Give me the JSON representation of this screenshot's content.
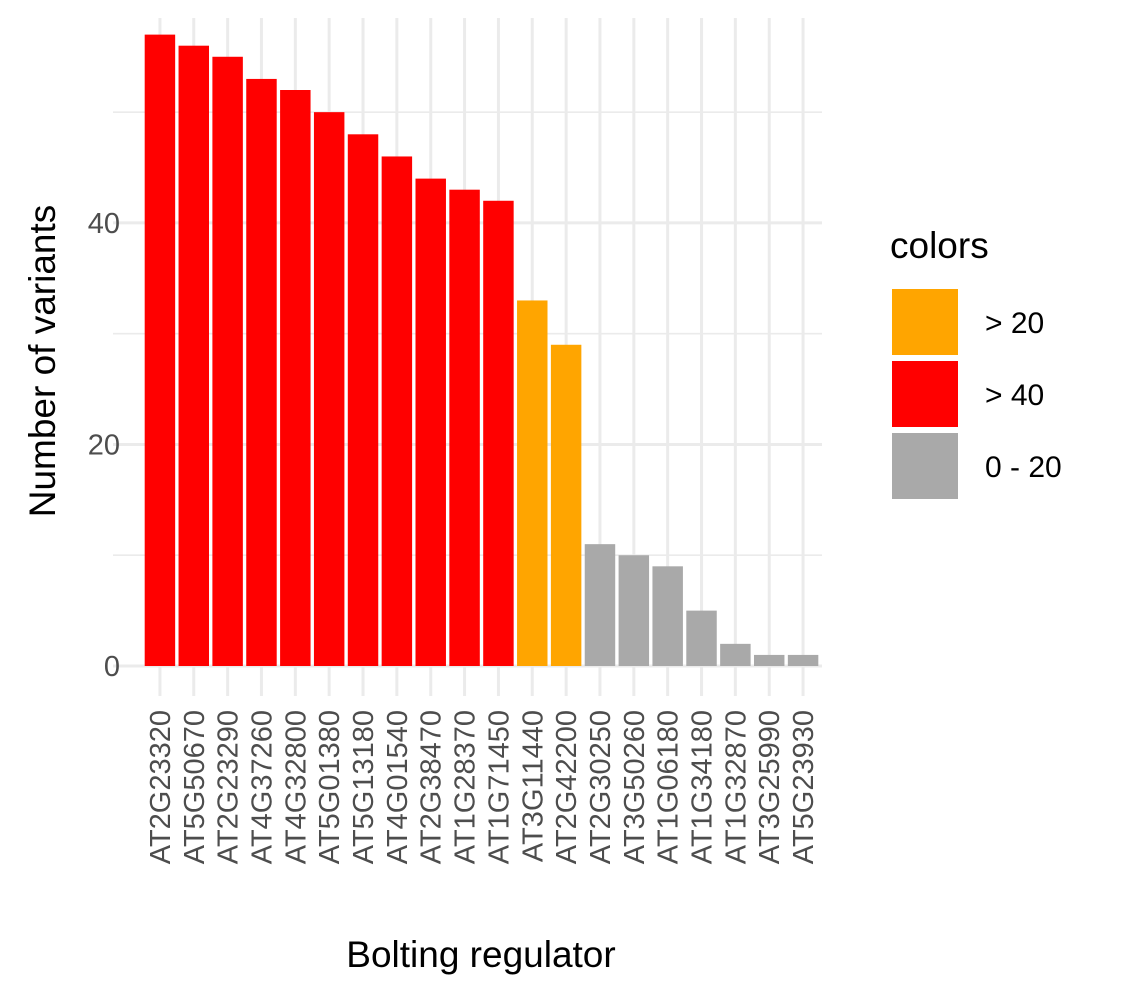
{
  "chart_data": {
    "type": "bar",
    "title": "",
    "xlabel": "Bolting regulator",
    "ylabel": "Number of variants",
    "ylim": [
      0,
      58.5
    ],
    "yticks": [
      0,
      20,
      40
    ],
    "grid": true,
    "legend_position": "right",
    "legend": {
      "title": "colors",
      "entries": [
        {
          "label": "> 20",
          "color": "#FFA500"
        },
        {
          "label": "> 40",
          "color": "#FF0000"
        },
        {
          "label": "0 - 20",
          "color": "#A9A9A9"
        }
      ]
    },
    "categories": [
      "AT2G23320",
      "AT5G50670",
      "AT2G23290",
      "AT4G37260",
      "AT4G32800",
      "AT5G01380",
      "AT5G13180",
      "AT4G01540",
      "AT2G38470",
      "AT1G28370",
      "AT1G71450",
      "AT3G11440",
      "AT2G42200",
      "AT2G30250",
      "AT3G50260",
      "AT1G06180",
      "AT1G34180",
      "AT1G32870",
      "AT3G25990",
      "AT5G23930"
    ],
    "values": [
      57,
      56,
      55,
      53,
      52,
      50,
      48,
      46,
      44,
      43,
      42,
      33,
      29,
      11,
      10,
      9,
      5,
      2,
      1,
      1
    ],
    "groups": [
      "> 40",
      "> 40",
      "> 40",
      "> 40",
      "> 40",
      "> 40",
      "> 40",
      "> 40",
      "> 40",
      "> 40",
      "> 40",
      "> 20",
      "> 20",
      "0 - 20",
      "0 - 20",
      "0 - 20",
      "0 - 20",
      "0 - 20",
      "0 - 20",
      "0 - 20"
    ]
  }
}
